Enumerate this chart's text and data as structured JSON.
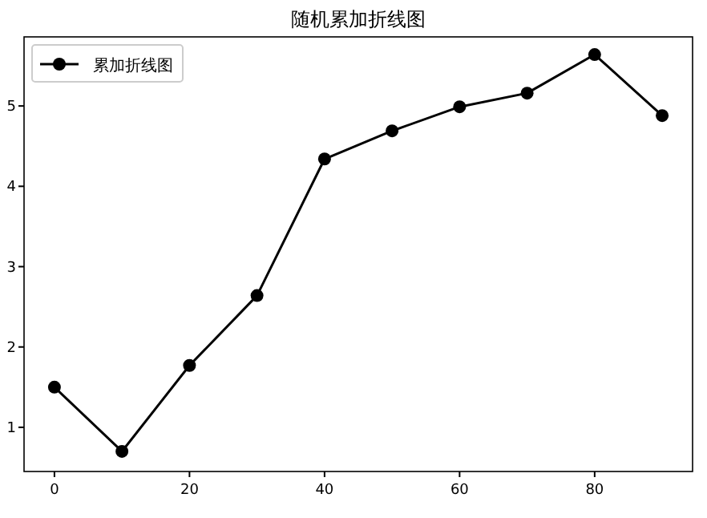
{
  "chart_data": {
    "type": "line",
    "title": "随机累加折线图",
    "x": [
      0,
      10,
      20,
      30,
      40,
      50,
      60,
      70,
      80,
      90
    ],
    "series": [
      {
        "name": "累加折线图",
        "color": "#000000",
        "values": [
          1.5,
          0.7,
          1.77,
          2.64,
          4.34,
          4.69,
          4.99,
          5.16,
          5.64,
          4.88
        ]
      }
    ],
    "xlim": [
      -4.5,
      94.5
    ],
    "ylim": [
      0.45,
      5.86
    ],
    "xticks": [
      0,
      20,
      40,
      60,
      80
    ],
    "yticks": [
      1,
      2,
      3,
      4,
      5
    ],
    "legend": "top left",
    "marker": "circle",
    "line_style": "solid",
    "grid": false
  }
}
